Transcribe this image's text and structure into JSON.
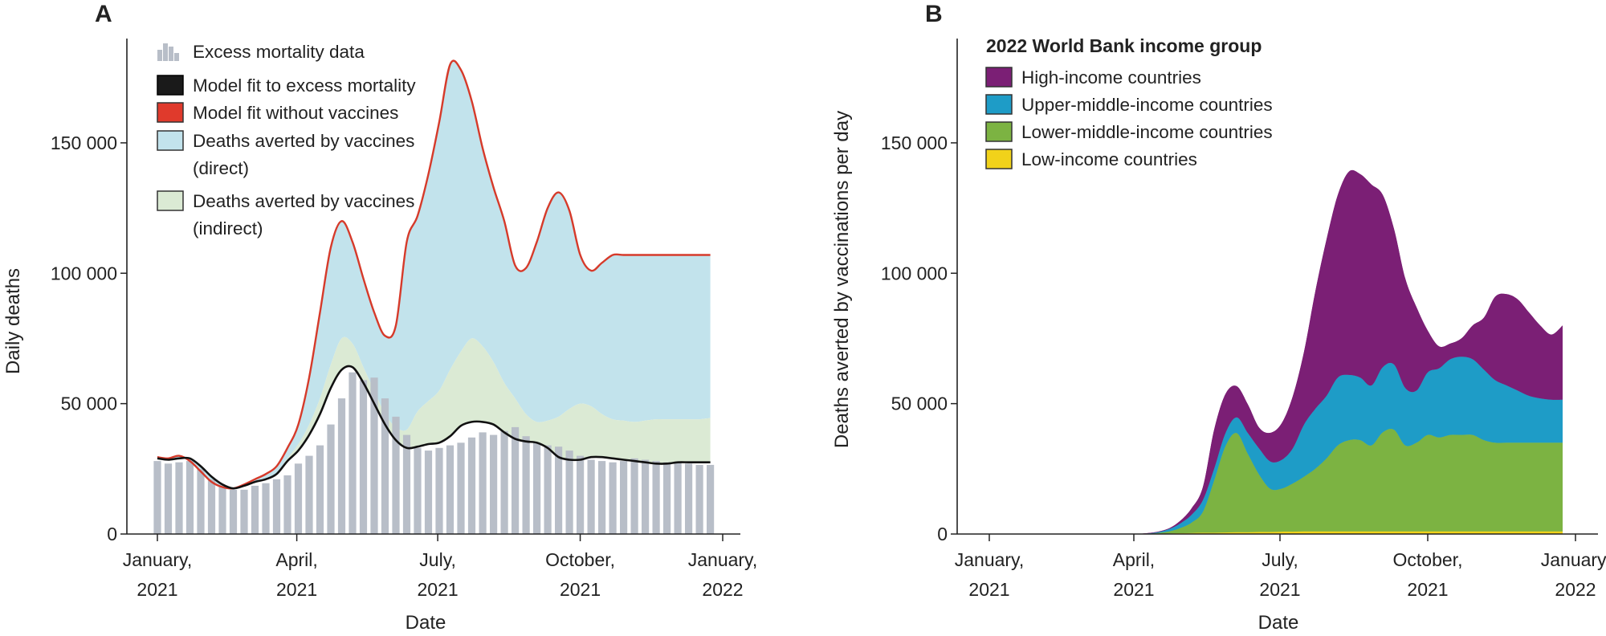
{
  "chart_data": [
    {
      "panel": "A",
      "type": "area",
      "xlabel": "Date",
      "ylabel": "Daily deaths",
      "ylim": [
        0,
        190000
      ],
      "yticks": [
        {
          "v": 0,
          "label": "0"
        },
        {
          "v": 50000,
          "label": "50 000"
        },
        {
          "v": 100000,
          "label": "100 000"
        },
        {
          "v": 150000,
          "label": "150 000"
        }
      ],
      "xticks": [
        {
          "d": 0,
          "line1": "January,",
          "line2": "2021"
        },
        {
          "d": 90,
          "line1": "April,",
          "line2": "2021"
        },
        {
          "d": 181,
          "line1": "July,",
          "line2": "2021"
        },
        {
          "d": 273,
          "line1": "October,",
          "line2": "2021"
        },
        {
          "d": 365,
          "line1": "January,",
          "line2": "2022"
        }
      ],
      "x_days": [
        0,
        7,
        14,
        21,
        28,
        35,
        42,
        49,
        56,
        63,
        70,
        77,
        84,
        91,
        98,
        105,
        112,
        119,
        126,
        133,
        140,
        147,
        154,
        161,
        168,
        175,
        182,
        189,
        196,
        203,
        210,
        217,
        224,
        231,
        238,
        245,
        252,
        259,
        266,
        273,
        280,
        287,
        294,
        301,
        308,
        315,
        322,
        329,
        336,
        343,
        350,
        357
      ],
      "series": [
        {
          "name": "Excess mortality data",
          "kind": "bars",
          "values": [
            28000,
            27000,
            27500,
            28000,
            25000,
            21000,
            18000,
            17000,
            17000,
            18500,
            19500,
            21000,
            22500,
            27000,
            30000,
            34000,
            42000,
            52000,
            62000,
            59000,
            60000,
            52000,
            45000,
            38000,
            33000,
            32000,
            33000,
            34000,
            35000,
            37000,
            39000,
            38000,
            39500,
            41000,
            37500,
            35000,
            34000,
            33500,
            32000,
            30000,
            28500,
            28000,
            27500,
            28000,
            29000,
            28500,
            28000,
            27500,
            27500,
            27000,
            26500,
            26500
          ]
        },
        {
          "name": "Model fit to excess mortality",
          "kind": "line",
          "color": "#111111",
          "values": [
            29000,
            28500,
            29000,
            29000,
            26000,
            22000,
            19000,
            17500,
            18500,
            20000,
            21000,
            23000,
            28000,
            32000,
            38000,
            46000,
            56000,
            63000,
            64000,
            58000,
            50000,
            42000,
            36000,
            33000,
            33500,
            34500,
            35000,
            37500,
            41500,
            43000,
            43000,
            42000,
            39000,
            36500,
            35500,
            35000,
            33000,
            29500,
            28500,
            28500,
            29500,
            29500,
            29000,
            28500,
            28000,
            27500,
            27000,
            27000,
            27500,
            27500,
            27500,
            27500
          ]
        },
        {
          "name": "Deaths averted by vaccines (indirect)",
          "kind": "band",
          "color": "#dbead4",
          "values": [
            29000,
            28500,
            29000,
            29000,
            26000,
            22000,
            19000,
            17500,
            18500,
            20000,
            21000,
            23500,
            29000,
            34500,
            42000,
            52000,
            65000,
            75000,
            73000,
            64000,
            55000,
            46000,
            41000,
            40000,
            47000,
            51000,
            55000,
            63000,
            70000,
            75000,
            72000,
            66000,
            58000,
            52000,
            46000,
            43000,
            43500,
            45000,
            48000,
            50000,
            49000,
            46000,
            44000,
            43500,
            43000,
            43500,
            44000,
            44000,
            44000,
            44000,
            44000,
            44500
          ]
        },
        {
          "name": "Deaths averted by vaccines (direct)",
          "kind": "band",
          "color": "#c2e3ec",
          "values": [
            29500,
            29000,
            30000,
            28000,
            24000,
            20000,
            18000,
            17500,
            19000,
            21000,
            23000,
            26000,
            33000,
            42000,
            60000,
            85000,
            110000,
            120000,
            112000,
            98000,
            85000,
            76000,
            80000,
            112000,
            122000,
            138000,
            158000,
            180000,
            178000,
            166000,
            148000,
            133000,
            120000,
            103000,
            102000,
            112000,
            125000,
            131000,
            124000,
            107000,
            101000,
            104000,
            107000,
            107000,
            107000,
            107000,
            107000,
            107000,
            107000,
            107000,
            107000,
            107000
          ]
        },
        {
          "name": "Model fit without vaccines",
          "kind": "line",
          "color": "#d63a2a",
          "values": [
            29500,
            29000,
            30000,
            28000,
            24000,
            20000,
            18000,
            17500,
            19000,
            21000,
            23000,
            26000,
            33000,
            42000,
            60000,
            85000,
            110000,
            120000,
            112000,
            98000,
            85000,
            76000,
            80000,
            112000,
            122000,
            138000,
            158000,
            180000,
            178000,
            166000,
            148000,
            133000,
            120000,
            103000,
            102000,
            112000,
            125000,
            131000,
            124000,
            107000,
            101000,
            104000,
            107000,
            107000,
            107000,
            107000,
            107000,
            107000,
            107000,
            107000,
            107000,
            107000
          ]
        }
      ],
      "legend": [
        {
          "label": "Excess mortality data",
          "swatch": "bars"
        },
        {
          "label": "Model fit to excess mortality",
          "swatch": "black"
        },
        {
          "label": "Model fit without vaccines",
          "swatch": "red"
        },
        {
          "label": "Deaths averted by vaccines",
          "label2": "(direct)",
          "swatch": "blue"
        },
        {
          "label": "Deaths averted by vaccines",
          "label2": "(indirect)",
          "swatch": "green"
        }
      ],
      "colors": {
        "bars": "#b8bec8",
        "line_black": "#111111",
        "line_red": "#d63a2a",
        "direct": "#c2e3ec",
        "indirect": "#dbead4"
      }
    },
    {
      "panel": "B",
      "type": "area",
      "stacked": true,
      "xlabel": "Date",
      "ylabel": "Deaths averted by vaccinations per day",
      "ylim": [
        0,
        190000
      ],
      "yticks": [
        {
          "v": 0,
          "label": "0"
        },
        {
          "v": 50000,
          "label": "50 000"
        },
        {
          "v": 100000,
          "label": "100 000"
        },
        {
          "v": 150000,
          "label": "150 000"
        }
      ],
      "xticks": [
        {
          "d": 0,
          "line1": "January,",
          "line2": "2021"
        },
        {
          "d": 90,
          "line1": "April,",
          "line2": "2021"
        },
        {
          "d": 181,
          "line1": "July,",
          "line2": "2021"
        },
        {
          "d": 273,
          "line1": "October,",
          "line2": "2021"
        },
        {
          "d": 365,
          "line1": "January,",
          "line2": "2022"
        }
      ],
      "legend_title": "2022 World Bank income group",
      "x_days": [
        0,
        7,
        14,
        21,
        28,
        35,
        42,
        49,
        56,
        63,
        70,
        77,
        84,
        91,
        98,
        105,
        112,
        119,
        126,
        133,
        140,
        147,
        154,
        161,
        168,
        175,
        182,
        189,
        196,
        203,
        210,
        217,
        224,
        231,
        238,
        245,
        252,
        259,
        266,
        273,
        280,
        287,
        294,
        301,
        308,
        315,
        322,
        329,
        336,
        343,
        350,
        357
      ],
      "series": [
        {
          "name": "Low-income countries",
          "color": "#f1d21a",
          "values": [
            0,
            0,
            0,
            0,
            0,
            0,
            0,
            0,
            0,
            0,
            0,
            0,
            0,
            0,
            0,
            100,
            200,
            300,
            400,
            500,
            500,
            600,
            700,
            700,
            800,
            800,
            900,
            900,
            1000,
            1000,
            1000,
            1000,
            1000,
            1000,
            1000,
            1000,
            1000,
            1000,
            1000,
            1000,
            1000,
            1000,
            1000,
            1000,
            1000,
            1000,
            1000,
            1000,
            1000,
            1000,
            1000,
            1000
          ]
        },
        {
          "name": "Lower-middle-income countries",
          "color": "#7cb342",
          "values": [
            0,
            0,
            0,
            0,
            0,
            0,
            0,
            0,
            0,
            0,
            0,
            0,
            0,
            0,
            100,
            300,
            800,
            2000,
            4000,
            8000,
            20000,
            33000,
            38000,
            30000,
            22000,
            16500,
            16500,
            18500,
            21000,
            24000,
            28000,
            33000,
            35000,
            35000,
            33000,
            38000,
            39000,
            33000,
            34000,
            37000,
            36000,
            37000,
            37000,
            37000,
            35000,
            34000,
            34000,
            34000,
            34000,
            34000,
            34000,
            34000
          ]
        },
        {
          "name": "Upper-middle-income countries",
          "color": "#1e9cc7",
          "values": [
            0,
            0,
            0,
            0,
            0,
            0,
            0,
            0,
            0,
            0,
            0,
            0,
            0,
            0,
            100,
            300,
            900,
            1800,
            3000,
            4500,
            4500,
            5000,
            6000,
            8000,
            10000,
            10500,
            11000,
            13500,
            20000,
            23000,
            24000,
            26000,
            25000,
            24000,
            23000,
            25000,
            25000,
            22000,
            20000,
            24000,
            26500,
            29000,
            30000,
            29000,
            27000,
            24000,
            22000,
            20000,
            18000,
            17000,
            16500,
            16500
          ]
        },
        {
          "name": "High-income countries",
          "color": "#7b1f75",
          "values": [
            0,
            0,
            0,
            0,
            0,
            0,
            0,
            0,
            0,
            0,
            0,
            0,
            0,
            0,
            100,
            200,
            300,
            1000,
            2500,
            5000,
            15000,
            15000,
            12000,
            11000,
            8000,
            11000,
            14000,
            20000,
            28000,
            45000,
            60000,
            70000,
            78000,
            78000,
            77000,
            66000,
            52000,
            42000,
            32000,
            16000,
            8500,
            6000,
            7000,
            13000,
            20000,
            32000,
            35000,
            35000,
            32000,
            28000,
            25000,
            28500
          ]
        }
      ],
      "legend": [
        {
          "label": "High-income countries",
          "color": "#7b1f75"
        },
        {
          "label": "Upper-middle-income countries",
          "color": "#1e9cc7"
        },
        {
          "label": "Lower-middle-income countries",
          "color": "#7cb342"
        },
        {
          "label": "Low-income countries",
          "color": "#f1d21a"
        }
      ]
    }
  ]
}
